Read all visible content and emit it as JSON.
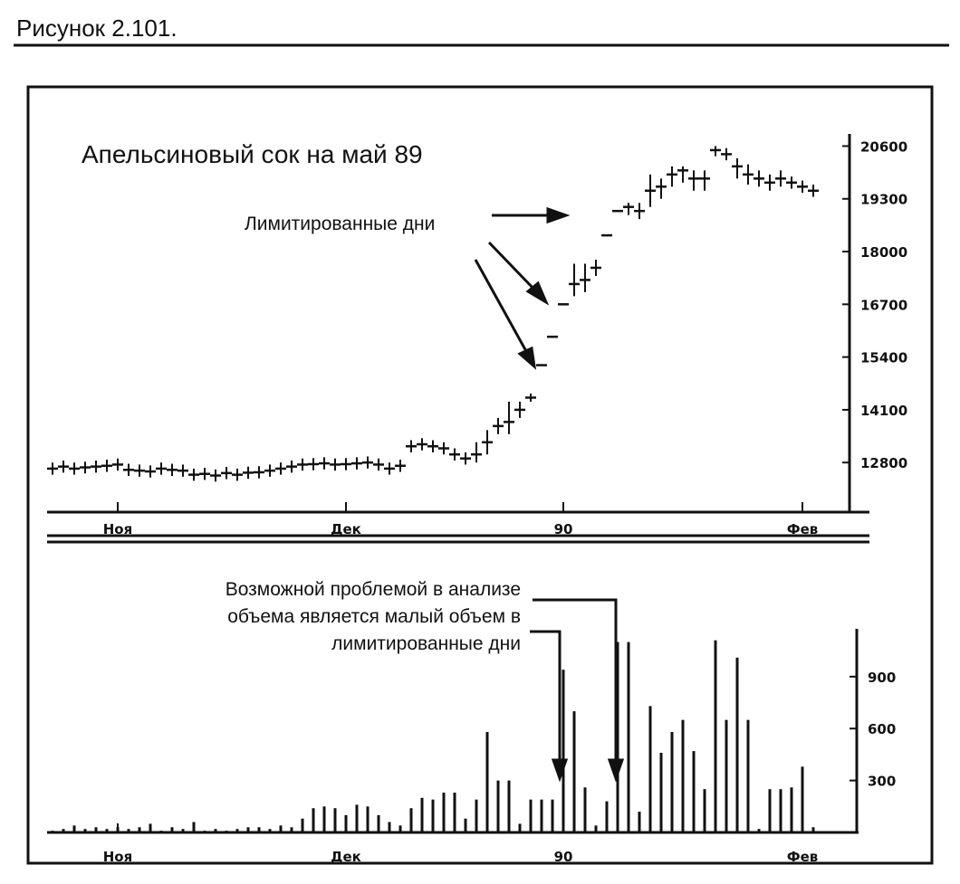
{
  "caption": "Рисунок 2.101.",
  "chart_data": [
    {
      "type": "hlc",
      "title": "Апельсиновый сок на май 89",
      "annotations": [
        "Лимитированные дни"
      ],
      "categories": [
        null,
        null,
        null,
        null,
        null,
        null,
        "Ноя",
        null,
        null,
        null,
        null,
        null,
        null,
        null,
        null,
        null,
        null,
        null,
        null,
        null,
        null,
        null,
        null,
        null,
        null,
        null,
        null,
        "Дек",
        null,
        null,
        null,
        null,
        null,
        null,
        null,
        null,
        null,
        null,
        null,
        null,
        null,
        null,
        null,
        null,
        null,
        null,
        null,
        "90",
        null,
        null,
        null,
        null,
        null,
        null,
        null,
        null,
        null,
        null,
        null,
        null,
        null,
        null,
        null,
        null,
        null,
        null,
        null,
        null,
        null,
        "Фев",
        null
      ],
      "series": [
        {
          "color": "#111111",
          "high": [
            12800,
            12850,
            12800,
            12820,
            12850,
            12870,
            12900,
            12770,
            12750,
            12730,
            12800,
            12770,
            12750,
            12650,
            12670,
            12630,
            12690,
            12650,
            12700,
            12710,
            12750,
            12800,
            12850,
            12900,
            12910,
            12930,
            12900,
            12910,
            12930,
            12950,
            12900,
            12800,
            12870,
            13350,
            13400,
            13350,
            13300,
            13150,
            13050,
            13300,
            13600,
            13900,
            14300,
            14300,
            14500,
            15200,
            15900,
            16700,
            17700,
            17700,
            17800,
            18400,
            19000,
            19200,
            19200,
            19900,
            19800,
            20100,
            20100,
            20000,
            20000,
            20600,
            20550,
            20300,
            20150,
            20000,
            19900,
            20000,
            19850,
            19750,
            19650
          ],
          "low": [
            12500,
            12550,
            12500,
            12530,
            12550,
            12570,
            12600,
            12470,
            12450,
            12430,
            12500,
            12470,
            12450,
            12350,
            12370,
            12330,
            12390,
            12350,
            12400,
            12410,
            12450,
            12500,
            12550,
            12600,
            12610,
            12630,
            12600,
            12610,
            12630,
            12650,
            12600,
            12500,
            12570,
            13050,
            13100,
            13050,
            13000,
            12850,
            12750,
            12800,
            13000,
            13500,
            13500,
            13900,
            14300,
            15200,
            15900,
            16700,
            16900,
            17000,
            17400,
            18400,
            19000,
            18900,
            18800,
            19100,
            19300,
            19600,
            19700,
            19500,
            19500,
            20350,
            20250,
            19800,
            19650,
            19600,
            19500,
            19600,
            19550,
            19450,
            19350
          ],
          "close": [
            12650,
            12700,
            12650,
            12680,
            12700,
            12720,
            12750,
            12620,
            12600,
            12580,
            12650,
            12620,
            12600,
            12500,
            12520,
            12480,
            12540,
            12500,
            12550,
            12560,
            12600,
            12650,
            12700,
            12750,
            12760,
            12780,
            12750,
            12760,
            12780,
            12800,
            12750,
            12650,
            12720,
            13200,
            13250,
            13200,
            13150,
            13000,
            12900,
            13000,
            13300,
            13700,
            13800,
            14100,
            14400,
            15200,
            15900,
            16700,
            17200,
            17300,
            17600,
            18400,
            19000,
            19100,
            19000,
            19500,
            19600,
            19900,
            20000,
            19800,
            19800,
            20500,
            20400,
            20100,
            19900,
            19800,
            19700,
            19800,
            19700,
            19600,
            19500
          ]
        }
      ],
      "ylim": [
        11600,
        20900
      ],
      "yticks": [
        12800,
        14100,
        15400,
        16700,
        18000,
        19300,
        20600
      ]
    },
    {
      "type": "bar",
      "annotations": [
        "Возможной проблемой в анализе",
        "объема является малый объем в",
        "лимитированные дни"
      ],
      "categories": [
        null,
        null,
        null,
        null,
        null,
        null,
        "Ноя",
        null,
        null,
        null,
        null,
        null,
        null,
        null,
        null,
        null,
        null,
        null,
        null,
        null,
        null,
        null,
        null,
        null,
        null,
        null,
        null,
        "Дек",
        null,
        null,
        null,
        null,
        null,
        null,
        null,
        null,
        null,
        null,
        null,
        null,
        null,
        null,
        null,
        null,
        null,
        null,
        null,
        "90",
        null,
        null,
        null,
        null,
        null,
        null,
        null,
        null,
        null,
        null,
        null,
        null,
        null,
        null,
        null,
        null,
        null,
        null,
        null,
        null,
        null,
        "Фев",
        null
      ],
      "values": [
        10,
        20,
        40,
        20,
        30,
        20,
        30,
        20,
        30,
        50,
        10,
        30,
        20,
        60,
        10,
        20,
        10,
        20,
        30,
        30,
        20,
        40,
        30,
        80,
        140,
        150,
        140,
        100,
        160,
        150,
        100,
        60,
        40,
        140,
        200,
        190,
        230,
        230,
        80,
        190,
        580,
        300,
        300,
        50,
        190,
        190,
        190,
        940,
        700,
        260,
        40,
        180,
        1100,
        1100,
        120,
        730,
        460,
        580,
        650,
        470,
        250,
        1110,
        650,
        1010,
        650,
        20,
        250,
        250,
        260,
        380,
        30
      ],
      "color": "#111111",
      "ylim": [
        0,
        1150
      ],
      "yticks": [
        300,
        600,
        900
      ]
    }
  ]
}
